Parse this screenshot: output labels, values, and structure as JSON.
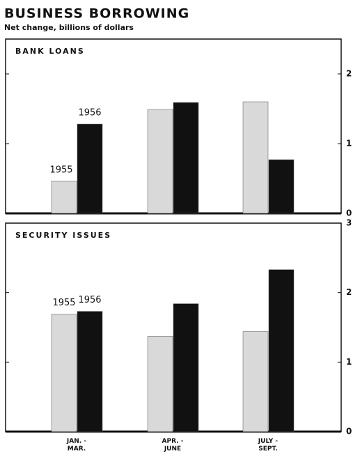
{
  "title": "BUSINESS BORROWING",
  "subtitle": "Net change, billions of dollars",
  "chart_data": [
    {
      "type": "bar",
      "title": "BANK LOANS",
      "categories": [
        null,
        null,
        null
      ],
      "series": [
        {
          "name": "1955",
          "color": "#d9d9d9",
          "values": [
            0.46,
            1.49,
            1.6
          ]
        },
        {
          "name": "1956",
          "color": "#111111",
          "values": [
            1.28,
            1.59,
            0.77
          ]
        }
      ],
      "ylim": [
        0,
        2.5
      ],
      "yticks": [
        0,
        1,
        2
      ]
    },
    {
      "type": "bar",
      "title": "SECURITY ISSUES",
      "categories": [
        "JAN. -\nMAR.",
        "APR. -\nJUNE",
        "JULY -\nSEPT."
      ],
      "series": [
        {
          "name": "1955",
          "color": "#d9d9d9",
          "values": [
            1.69,
            1.37,
            1.44
          ]
        },
        {
          "name": "1956",
          "color": "#111111",
          "values": [
            1.73,
            1.84,
            2.33
          ]
        }
      ],
      "ylim": [
        0,
        3
      ],
      "yticks": [
        0,
        1,
        2,
        3
      ]
    }
  ]
}
